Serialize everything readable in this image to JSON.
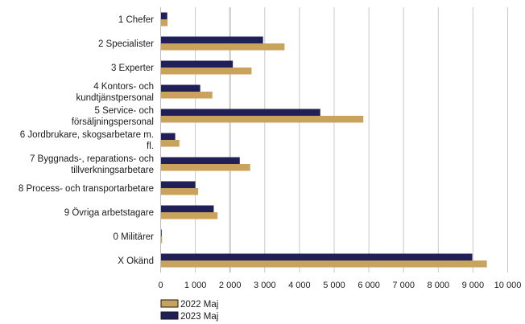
{
  "chart_data": {
    "type": "bar",
    "orientation": "horizontal",
    "title": "",
    "xlabel": "",
    "ylabel": "",
    "xlim": [
      0,
      10000
    ],
    "x_ticks": [
      0,
      1000,
      2000,
      3000,
      4000,
      5000,
      6000,
      7000,
      8000,
      9000,
      10000
    ],
    "x_tick_labels": [
      "0",
      "1 000",
      "2 000",
      "3 000",
      "4 000",
      "5 000",
      "6 000",
      "7 000",
      "8 000",
      "9 000",
      "10 000"
    ],
    "grid": "vertical",
    "legend_position": "bottom-left",
    "categories": [
      [
        "1 Chefer"
      ],
      [
        "2 Specialister"
      ],
      [
        "3 Experter"
      ],
      [
        "4 Kontors- och",
        "kundtjänstpersonal"
      ],
      [
        "5 Service- och",
        "försäljningspersonal"
      ],
      [
        "6 Jordbrukare, skogsarbetare m.",
        "fl."
      ],
      [
        "7 Byggnads-, reparations- och",
        "tillverkningsarbetare"
      ],
      [
        "8 Process- och transportarbetare"
      ],
      [
        "9 Övriga arbetstagare"
      ],
      [
        "0 Militärer"
      ],
      [
        "X Okänd"
      ]
    ],
    "series": [
      {
        "name": "2023 Maj",
        "color": "#201f57",
        "values": [
          190,
          2950,
          2080,
          1140,
          4600,
          420,
          2280,
          1000,
          1530,
          30,
          8980
        ]
      },
      {
        "name": "2022 Maj",
        "color": "#c9a25c",
        "values": [
          200,
          3570,
          2620,
          1490,
          5840,
          540,
          2580,
          1080,
          1640,
          40,
          9400
        ]
      }
    ],
    "legend_order": [
      "2022 Maj",
      "2023 Maj"
    ]
  }
}
